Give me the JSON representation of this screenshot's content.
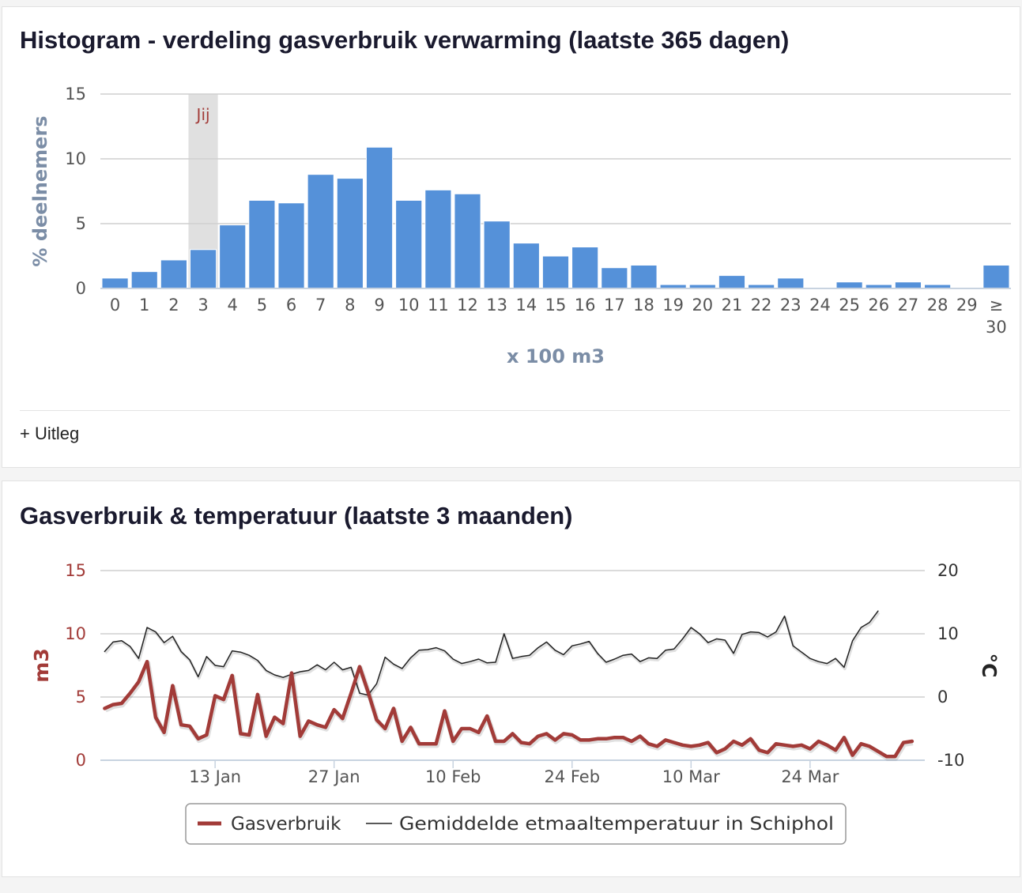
{
  "histogram": {
    "title": "Histogram - verdeling gasverbruik verwarming (laatste 365 dagen)",
    "uitleg": "+ Uitleg",
    "colors": {
      "bar": "#5591d9",
      "highlight": "#e0e0e0",
      "highlightText": "#a23b38",
      "axisTitle": "#7b8da6",
      "tick": "#555555"
    }
  },
  "timeseries": {
    "title": "Gasverbruik & temperatuur (laatste 3 maanden)",
    "colors": {
      "gas": "#a23b38",
      "temp": "#222222"
    }
  },
  "chart_data": [
    {
      "type": "bar",
      "title": "Histogram - verdeling gasverbruik verwarming (laatste 365 dagen)",
      "categories": [
        "0",
        "1",
        "2",
        "3",
        "4",
        "5",
        "6",
        "7",
        "8",
        "9",
        "10",
        "11",
        "12",
        "13",
        "14",
        "15",
        "16",
        "17",
        "18",
        "19",
        "20",
        "21",
        "22",
        "23",
        "24",
        "25",
        "26",
        "27",
        "28",
        "29",
        "≥ 30"
      ],
      "values": [
        0.8,
        1.3,
        2.2,
        3.0,
        4.9,
        6.8,
        6.6,
        8.8,
        8.5,
        10.9,
        6.8,
        7.6,
        7.3,
        5.2,
        3.5,
        2.5,
        3.2,
        1.6,
        1.8,
        0.3,
        0.3,
        1.0,
        0.3,
        0.8,
        0.0,
        0.5,
        0.3,
        0.5,
        0.3,
        0.0,
        1.8
      ],
      "xlabel": "x 100 m3",
      "ylabel": "% deelnemers",
      "ylim": [
        0,
        15
      ],
      "yticks": [
        0,
        5,
        10,
        15
      ],
      "highlight": {
        "category": "3",
        "label": "Jij"
      }
    },
    {
      "type": "line",
      "title": "Gasverbruik & temperatuur (laatste 3 maanden)",
      "xtick_labels": [
        "13 Jan",
        "27 Jan",
        "10 Feb",
        "24 Feb",
        "10 Mar",
        "24 Mar"
      ],
      "xtick_day_index": [
        13,
        27,
        41,
        55,
        69,
        83
      ],
      "yaxis_left": {
        "label": "m3",
        "ylim": [
          0,
          15
        ],
        "ticks": [
          0,
          5,
          10,
          15
        ]
      },
      "yaxis_right": {
        "label": "°C",
        "ylim": [
          -10,
          20
        ],
        "ticks": [
          -10,
          0,
          10,
          20
        ]
      },
      "legend": "bottom",
      "series": [
        {
          "name": "Gasverbruik",
          "axis": "left",
          "values": [
            4.1,
            4.4,
            4.5,
            5.3,
            6.2,
            7.8,
            3.4,
            2.2,
            5.9,
            2.8,
            2.7,
            1.7,
            2.0,
            5.1,
            4.8,
            6.7,
            2.1,
            2.0,
            5.2,
            1.9,
            3.4,
            2.9,
            6.9,
            1.9,
            3.1,
            2.8,
            2.6,
            4.0,
            3.3,
            5.3,
            7.4,
            5.4,
            3.2,
            2.5,
            4.1,
            1.5,
            2.6,
            1.3,
            1.3,
            1.3,
            3.9,
            1.5,
            2.5,
            2.5,
            2.2,
            3.5,
            1.5,
            1.5,
            2.1,
            1.4,
            1.3,
            1.9,
            2.1,
            1.6,
            2.1,
            2.0,
            1.6,
            1.6,
            1.7,
            1.7,
            1.8,
            1.8,
            1.5,
            1.9,
            1.3,
            1.1,
            1.6,
            1.4,
            1.2,
            1.1,
            1.2,
            1.4,
            0.6,
            0.9,
            1.5,
            1.2,
            1.7,
            0.8,
            0.6,
            1.3,
            1.2,
            1.1,
            1.2,
            0.9,
            1.5,
            1.2,
            0.8,
            1.8,
            0.4,
            1.3,
            1.1,
            0.7,
            0.3,
            0.3,
            1.4,
            1.5
          ]
        },
        {
          "name": "Gemiddelde etmaaltemperatuur in Schiphol",
          "axis": "right",
          "values": [
            7.2,
            8.7,
            8.9,
            8.0,
            6.1,
            11.0,
            10.3,
            8.6,
            9.6,
            7.2,
            5.9,
            3.2,
            6.4,
            5.0,
            4.8,
            7.3,
            7.1,
            6.6,
            5.8,
            4.2,
            3.5,
            3.1,
            3.6,
            4.0,
            4.2,
            5.1,
            4.3,
            5.5,
            4.3,
            4.7,
            0.6,
            0.3,
            2.1,
            6.3,
            5.2,
            4.5,
            6.2,
            7.4,
            7.5,
            7.8,
            7.3,
            6.0,
            5.3,
            5.6,
            6.0,
            5.4,
            5.5,
            10.0,
            6.1,
            6.4,
            6.6,
            7.8,
            8.7,
            7.4,
            6.7,
            8.1,
            8.4,
            8.8,
            6.9,
            5.5,
            6.0,
            6.6,
            6.8,
            5.6,
            6.2,
            6.1,
            7.4,
            7.6,
            9.2,
            11.0,
            10.0,
            8.6,
            9.2,
            9.0,
            6.9,
            9.9,
            10.3,
            10.2,
            9.5,
            10.3,
            12.8,
            8.1,
            7.1,
            6.1,
            5.6,
            5.3,
            6.1,
            4.7,
            8.9,
            11.0,
            11.8,
            13.6
          ]
        }
      ]
    }
  ]
}
